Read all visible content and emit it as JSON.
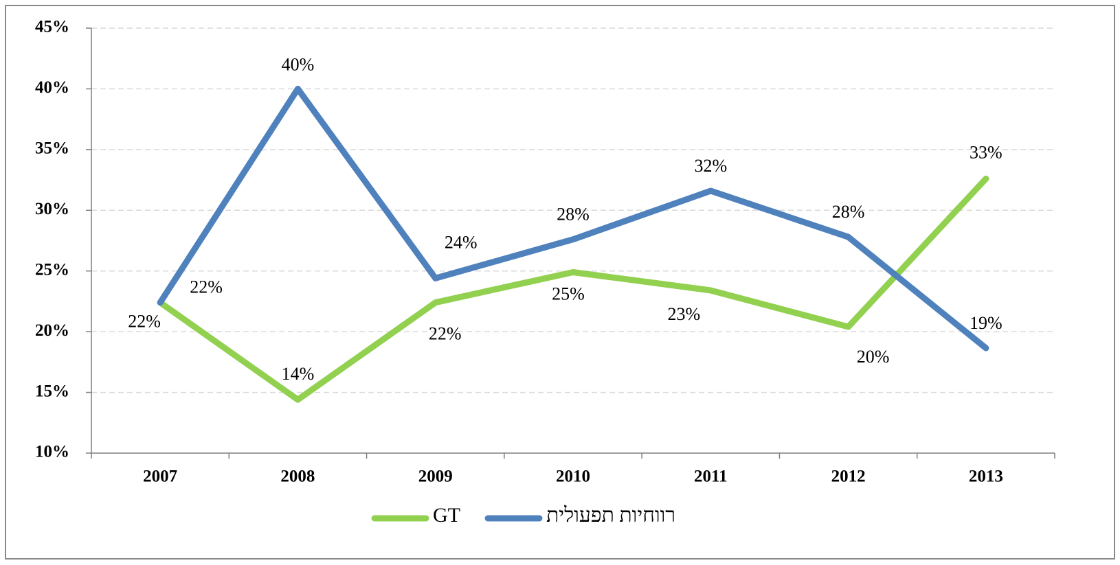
{
  "chart_data": {
    "type": "line",
    "categories": [
      "2007",
      "2008",
      "2009",
      "2010",
      "2011",
      "2012",
      "2013"
    ],
    "series": [
      {
        "name": "GT",
        "color": "#92d050",
        "values": [
          22.4,
          14.4,
          22.4,
          24.9,
          23.4,
          20.4,
          32.6
        ],
        "value_labels": [
          "22%",
          "14%",
          "22%",
          "25%",
          "23%",
          "20%",
          "33%"
        ]
      },
      {
        "name": "רווחיות תפעולית",
        "color": "#4f81bd",
        "values": [
          22.4,
          40,
          24.4,
          27.6,
          31.6,
          27.8,
          18.65
        ],
        "value_labels": [
          "22%",
          "40%",
          "24%",
          "28%",
          "32%",
          "28%",
          "19%"
        ]
      }
    ],
    "ylim": [
      10,
      45
    ],
    "yticks": [
      {
        "value": 10,
        "label": "10%"
      },
      {
        "value": 15,
        "label": "15%"
      },
      {
        "value": 20,
        "label": "20%"
      },
      {
        "value": 25,
        "label": "25%"
      },
      {
        "value": 30,
        "label": "30%"
      },
      {
        "value": 35,
        "label": "35%"
      },
      {
        "value": 40,
        "label": "40%"
      },
      {
        "value": 45,
        "label": "45%"
      }
    ],
    "grid": true,
    "legend": "bottom"
  }
}
